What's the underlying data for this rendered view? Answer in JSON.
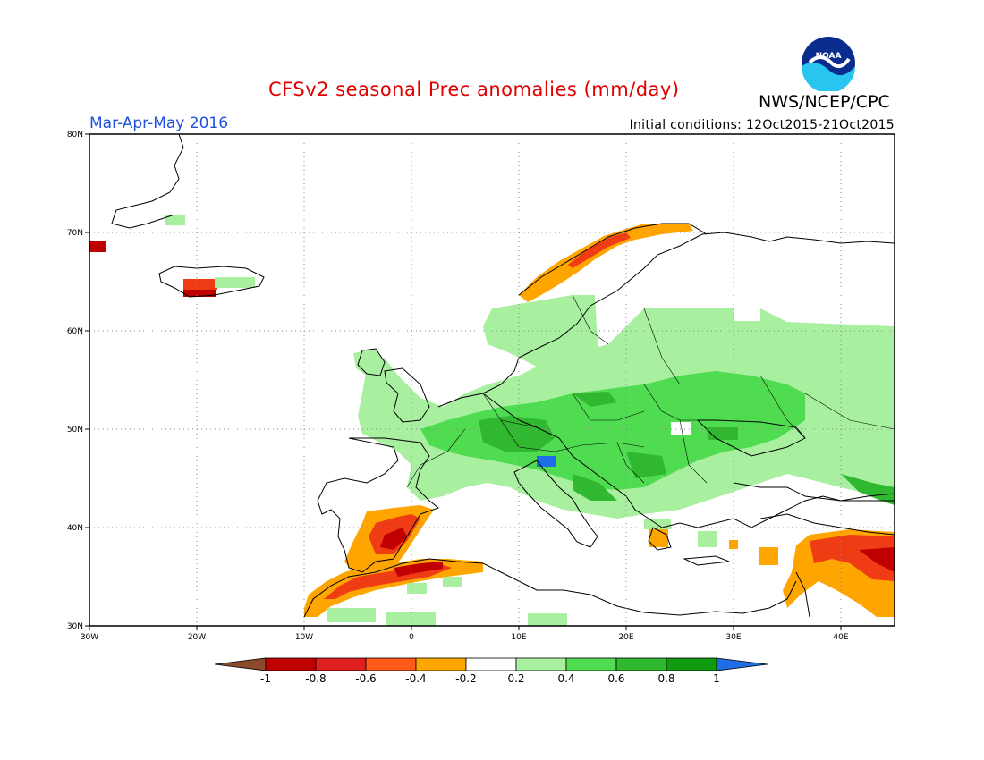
{
  "title": "CFSv2 seasonal Prec anomalies (mm/day)",
  "agency": "NWS/NCEP/CPC",
  "logo_text": "NOAA",
  "period": "Mar-Apr-May 2016",
  "initial_conditions": "Initial conditions: 12Oct2015-21Oct2015",
  "map": {
    "lon_range": [
      -30,
      45
    ],
    "lat_range": [
      30,
      80
    ],
    "lat_labels": [
      "80N",
      "70N",
      "60N",
      "50N",
      "40N",
      "30N"
    ],
    "lon_labels": [
      "30W",
      "20W",
      "10W",
      "0",
      "10E",
      "20E",
      "30E",
      "40E"
    ]
  },
  "colorbar": {
    "labels": [
      "-1",
      "-0.8",
      "-0.6",
      "-0.4",
      "-0.2",
      "0.2",
      "0.4",
      "0.6",
      "0.8",
      "1"
    ],
    "colors": [
      "#8b4a2b",
      "#c00000",
      "#e02020",
      "#ff5a1a",
      "#ffa500",
      "#ffffff",
      "#a8f0a0",
      "#50dc50",
      "#30b830",
      "#109a10",
      "#1e6ee8"
    ]
  },
  "palette": {
    "very_dry": "#c00000",
    "dry": "#f03c14",
    "slight_dry": "#ffa500",
    "slight_wet": "#a8f0a0",
    "wet": "#50dc50",
    "very_wet": "#30b830",
    "extreme_wet": "#1e6ee8",
    "coast": "#000000",
    "grid": "#888888"
  }
}
